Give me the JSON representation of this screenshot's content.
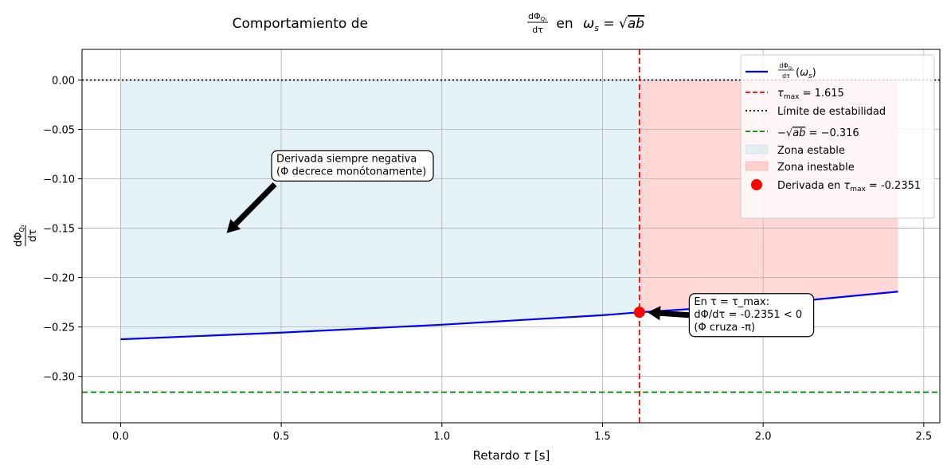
{
  "chart_data": {
    "type": "line",
    "title_prefix": "Comportamiento de ",
    "title_mid": " en ",
    "xlabel_prefix": "Retardo ",
    "xlabel_symbol": "τ",
    "xlabel_suffix": " [s]",
    "ylabel_num": "dΦ",
    "ylabel_sub": "Q₁",
    "ylabel_den": "dτ",
    "xlim": [
      -0.12,
      2.55
    ],
    "ylim": [
      -0.347,
      0.031
    ],
    "x_ticks": [
      0.0,
      0.5,
      1.0,
      1.5,
      2.0,
      2.5
    ],
    "x_tick_labels": [
      "0.0",
      "0.5",
      "1.0",
      "1.5",
      "2.0",
      "2.5"
    ],
    "y_ticks": [
      0.0,
      -0.05,
      -0.1,
      -0.15,
      -0.2,
      -0.25,
      -0.3
    ],
    "y_tick_labels": [
      "0.00",
      "−0.05",
      "−0.10",
      "−0.15",
      "−0.20",
      "−0.25",
      "−0.30"
    ],
    "grid": true,
    "series": [
      {
        "name": "dΦQ₁/dτ (ωs)",
        "color": "#0000ff",
        "x": [
          0.0,
          0.5,
          1.0,
          1.5,
          1.615,
          2.0,
          2.42
        ],
        "y": [
          -0.2625,
          -0.2557,
          -0.2477,
          -0.2381,
          -0.2351,
          -0.2272,
          -0.2142
        ]
      }
    ],
    "tau_max": 1.615,
    "tau_max_label": "τmax = 1.615",
    "stability_limit": 0.0,
    "stability_label": "Límite de estabilidad",
    "neg_sqrt_ab": -0.316,
    "neg_sqrt_ab_label": "−√ab = −0.316",
    "stable_zone": {
      "x": [
        0.0,
        1.615
      ],
      "label": "Zona estable",
      "color": "#add8e6"
    },
    "unstable_zone": {
      "x": [
        1.615,
        2.42
      ],
      "label": "Zona inestable",
      "color": "#ff9a94"
    },
    "marker": {
      "x": 1.615,
      "y": -0.2351,
      "label": "Derivada en τmax = -0.2351",
      "color": "#ff0000"
    },
    "annotations": [
      {
        "lines": [
          "Derivada siempre negativa",
          "(Φ decrece monótonamente)"
        ],
        "text_at": [
          0.48,
          -0.087
        ],
        "arrow_to": [
          0.33,
          -0.155
        ]
      },
      {
        "lines": [
          "En τ = τ_max:",
          "dΦ/dτ = -0.2351 < 0",
          "(Φ cruza -π)"
        ],
        "text_at": [
          1.78,
          -0.238
        ],
        "arrow_to": [
          1.64,
          -0.2351
        ]
      }
    ],
    "legend_position": "upper right",
    "colors": {
      "tau_line": "#ff0000",
      "stability_line": "#000000",
      "sqrt_line": "#008000",
      "grid": "#b0b0b0"
    }
  }
}
